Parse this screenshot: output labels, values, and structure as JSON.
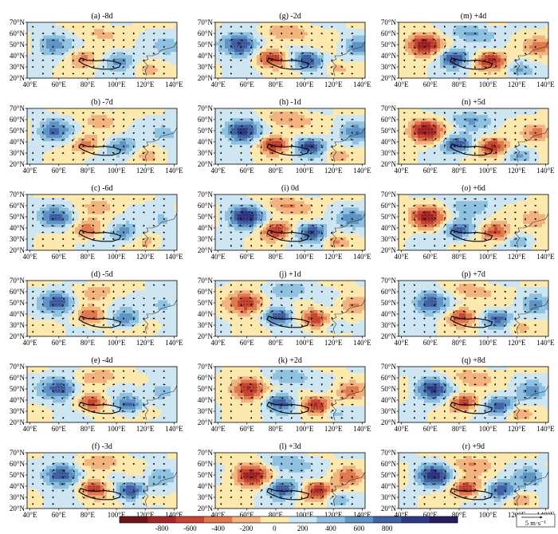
{
  "panels": [
    {
      "title": "(a) -8d",
      "sign": 1,
      "amp": 0.55
    },
    {
      "title": "(b) -7d",
      "sign": 1,
      "amp": 0.6
    },
    {
      "title": "(c) -6d",
      "sign": 1,
      "amp": 0.6
    },
    {
      "title": "(d) -5d",
      "sign": 1,
      "amp": 0.7
    },
    {
      "title": "(e) -4d",
      "sign": 1,
      "amp": 0.8
    },
    {
      "title": "(f) -3d",
      "sign": 1,
      "amp": 0.9
    },
    {
      "title": "(g) -2d",
      "sign": 1,
      "amp": 0.95
    },
    {
      "title": "(h) -1d",
      "sign": 1,
      "amp": 1.0
    },
    {
      "title": "(i) 0d",
      "sign": 1,
      "amp": 1.0
    },
    {
      "title": "(j) +1d",
      "sign": -1,
      "amp": 0.9
    },
    {
      "title": "(k) +2d",
      "sign": -1,
      "amp": 0.95
    },
    {
      "title": "(l) +3d",
      "sign": -1,
      "amp": 1.0
    },
    {
      "title": "(m) +4d",
      "sign": -1,
      "amp": 1.0
    },
    {
      "title": "(n) +5d",
      "sign": -1,
      "amp": 0.95
    },
    {
      "title": "(o) +6d",
      "sign": -1,
      "amp": 0.85
    },
    {
      "title": "(p) +7d",
      "sign": 1,
      "amp": 0.8
    },
    {
      "title": "(q) +8d",
      "sign": 1,
      "amp": 0.85
    },
    {
      "title": "(r) +9d",
      "sign": 1,
      "amp": 0.9
    }
  ],
  "lon_ticks": [
    "40°E",
    "60°E",
    "80°E",
    "100°E",
    "120°E",
    "140°E"
  ],
  "lat_ticks": [
    "20°N",
    "30°N",
    "40°N",
    "50°N",
    "60°N",
    "70°N"
  ],
  "colorbar": {
    "ticks": [
      "-800",
      "-600",
      "-400",
      "-200",
      "0",
      "200",
      "400",
      "600",
      "800"
    ],
    "colors": [
      "#6e1419",
      "#a4262a",
      "#c84431",
      "#e07a4e",
      "#f2b37e",
      "#fde9ad",
      "#cde6f2",
      "#8fc1e0",
      "#5f94c5",
      "#4262a5",
      "#2e3a86",
      "#241d60"
    ]
  },
  "reference_vector": {
    "label": "5 m·s⁻¹"
  }
}
